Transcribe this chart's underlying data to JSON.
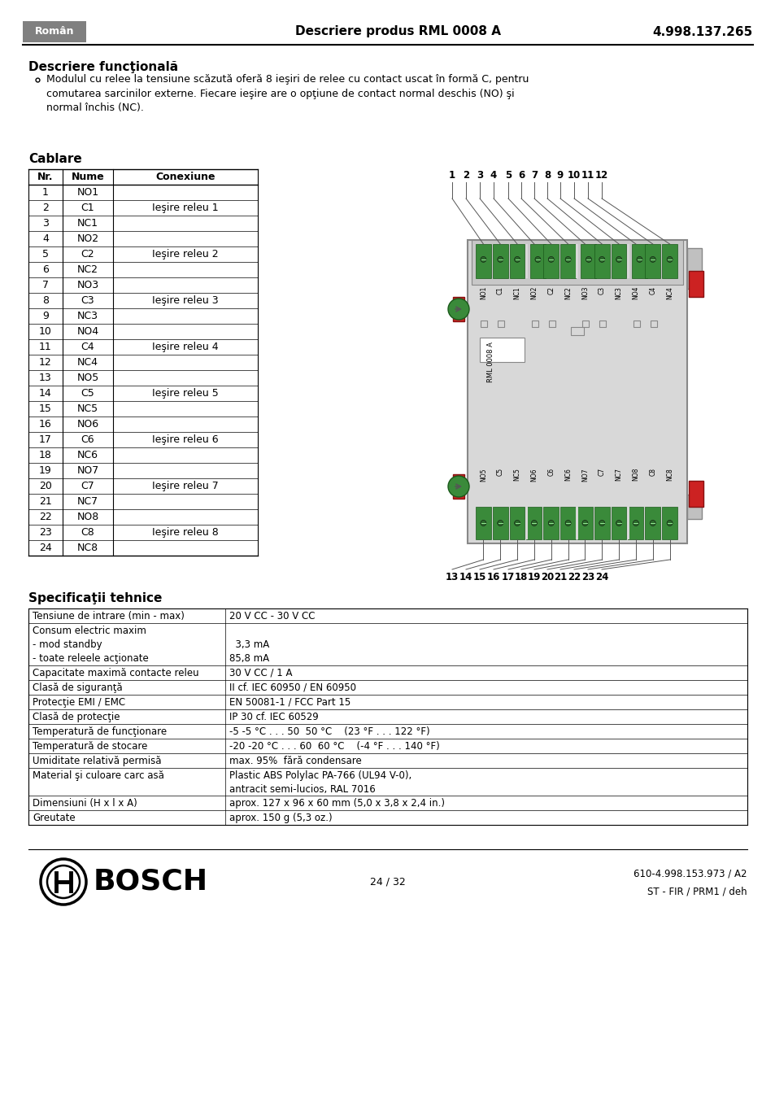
{
  "header_bg": "#888888",
  "header_text_left": "Român",
  "header_text_center": "Descriere produs RML 0008 A",
  "header_text_right": "4.998.137.265",
  "section1_title": "Descriere funcţională",
  "section2_title": "Cablare",
  "table_headers": [
    "Nr.",
    "Nume",
    "Conexiune"
  ],
  "table_rows": [
    [
      "1",
      "NO1",
      ""
    ],
    [
      "2",
      "C1",
      "Ieşire releu 1"
    ],
    [
      "3",
      "NC1",
      ""
    ],
    [
      "4",
      "NO2",
      ""
    ],
    [
      "5",
      "C2",
      "Ieşire releu 2"
    ],
    [
      "6",
      "NC2",
      ""
    ],
    [
      "7",
      "NO3",
      ""
    ],
    [
      "8",
      "C3",
      "Ieşire releu 3"
    ],
    [
      "9",
      "NC3",
      ""
    ],
    [
      "10",
      "NO4",
      ""
    ],
    [
      "11",
      "C4",
      "Ieşire releu 4"
    ],
    [
      "12",
      "NC4",
      ""
    ],
    [
      "13",
      "NO5",
      ""
    ],
    [
      "14",
      "C5",
      "Ieşire releu 5"
    ],
    [
      "15",
      "NC5",
      ""
    ],
    [
      "16",
      "NO6",
      ""
    ],
    [
      "17",
      "C6",
      "Ieşire releu 6"
    ],
    [
      "18",
      "NC6",
      ""
    ],
    [
      "19",
      "NO7",
      ""
    ],
    [
      "20",
      "C7",
      "Ieşire releu 7"
    ],
    [
      "21",
      "NC7",
      ""
    ],
    [
      "22",
      "NO8",
      ""
    ],
    [
      "23",
      "C8",
      "Ieşire releu 8"
    ],
    [
      "24",
      "NC8",
      ""
    ]
  ],
  "conn_groups": [
    [
      "Ieşire releu 1",
      0,
      2
    ],
    [
      "Ieşire releu 2",
      3,
      5
    ],
    [
      "Ieşire releu 3",
      6,
      8
    ],
    [
      "Ieşire releu 4",
      9,
      11
    ],
    [
      "Ieşire releu 5",
      12,
      14
    ],
    [
      "Ieşire releu 6",
      15,
      17
    ],
    [
      "Ieşire releu 7",
      18,
      20
    ],
    [
      "Ieşire releu 8",
      21,
      23
    ]
  ],
  "section3_title": "Specificaţii tehnice",
  "spec_rows": [
    [
      "Tensiune de intrare (min - max)",
      "20 V CC - 30 V CC",
      1
    ],
    [
      "Consum electric maxim\n- mod standby\n- toate releele acţionate",
      "  \n  3,3 mA\n85,8 mA",
      3
    ],
    [
      "Capacitate maximă contacte releu",
      "30 V CC / 1 A",
      1
    ],
    [
      "Clasă de siguranţă",
      "II cf. IEC 60950 / EN 60950",
      1
    ],
    [
      "Protecţie EMI / EMC",
      "EN 50081-1 / FCC Part 15",
      1
    ],
    [
      "Clasă de protecţie",
      "IP 30 cf. IEC 60529",
      1
    ],
    [
      "Temperatură de funcţionare",
      "-5 -5 °C . . . 50  50 °C    (23 °F . . . 122 °F)",
      1
    ],
    [
      "Temperatură de stocare",
      "-20 -20 °C . . . 60  60 °C    (-4 °F . . . 140 °F)",
      1
    ],
    [
      "Umiditate relativă permisă",
      "max. 95%  fără condensare",
      1
    ],
    [
      "Material şi culoare carc asă",
      "Plastic ABS Polylac PA-766 (UL94 V-0),\nantracit semi-lucios, RAL 7016",
      2
    ],
    [
      "Dimensiuni (H x l x A)",
      "aprox. 127 x 96 x 60 mm (5,0 x 3,8 x 2,4 in.)",
      1
    ],
    [
      "Greutate",
      "aprox. 150 g (5,3 oz.)",
      1
    ]
  ],
  "footer_page": "24 / 32",
  "footer_right1": "610-4.998.153.973 / A2",
  "footer_right2": "ST - FIR / PRM1 / deh",
  "top_labels": [
    "NO1",
    "C1",
    "NC1",
    "NO2",
    "C2",
    "NC2",
    "NO3",
    "C3",
    "NC3",
    "NO4",
    "C4",
    "NC4"
  ],
  "bot_labels": [
    "NO5",
    "C5",
    "NC5",
    "NO6",
    "C6",
    "NC6",
    "NO7",
    "C7",
    "NC7",
    "NO8",
    "C8",
    "NC8"
  ]
}
